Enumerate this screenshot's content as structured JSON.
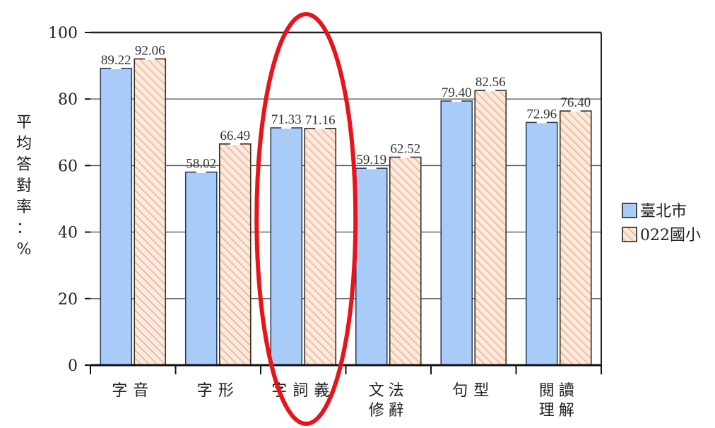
{
  "chart_data": {
    "type": "bar",
    "ylabel": "平均答對率：%",
    "ylim": [
      0,
      100
    ],
    "yticks": [
      0,
      20,
      40,
      60,
      80,
      100
    ],
    "grid": true,
    "legend_position": "right",
    "categories": [
      "字音",
      "字形",
      "字詞義",
      "文法修辭",
      "句型",
      "閱讀理解"
    ],
    "series": [
      {
        "name": "臺北市",
        "color": "#a9cbf7",
        "pattern": "solid",
        "values": [
          89.22,
          58.02,
          71.33,
          59.19,
          79.4,
          72.96
        ],
        "labels": [
          "89.22",
          "58.02",
          "71.33",
          "59.19",
          "79.40",
          "72.96"
        ]
      },
      {
        "name": "022國小",
        "color": "#f6dcc8",
        "pattern": "hatched",
        "values": [
          92.06,
          66.49,
          71.16,
          62.52,
          82.56,
          76.4
        ],
        "labels": [
          "92.06",
          "66.49",
          "71.16",
          "62.52",
          "82.56",
          "76.40"
        ]
      }
    ],
    "annotation": {
      "shape": "ellipse",
      "color": "#e8141b",
      "target_category": "字詞義"
    }
  }
}
